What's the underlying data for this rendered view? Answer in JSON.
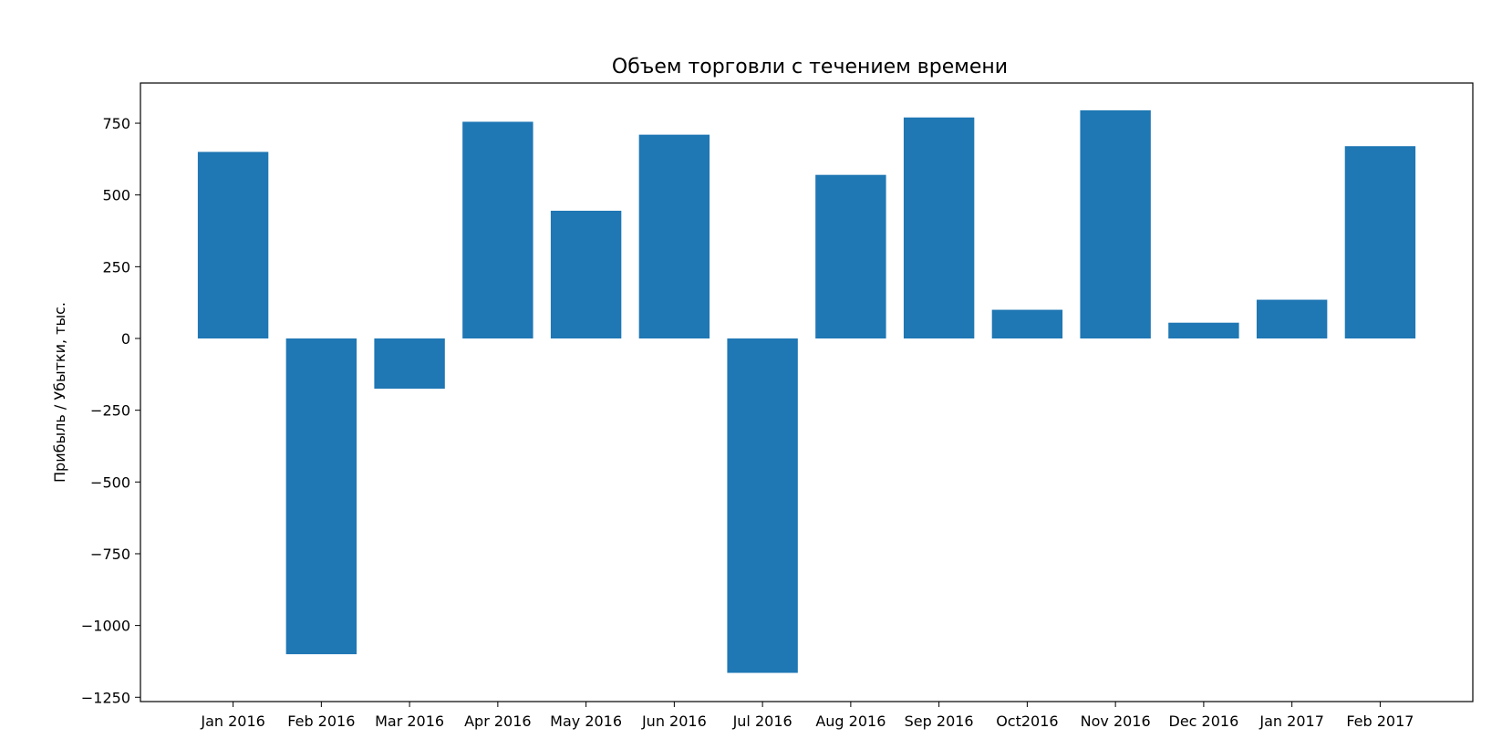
{
  "chart_data": {
    "type": "bar",
    "title": "Объем торговли с течением времени",
    "xlabel": "",
    "ylabel": "Прибыль / Убытки, тыс.",
    "categories": [
      "Jan 2016",
      "Feb 2016",
      "Mar 2016",
      "Apr 2016",
      "May 2016",
      "Jun 2016",
      "Jul 2016",
      "Aug 2016",
      "Sep 2016",
      "Oct2016",
      "Nov 2016",
      "Dec 2016",
      "Jan 2017",
      "Feb 2017"
    ],
    "values": [
      650,
      -1100,
      -175,
      755,
      445,
      710,
      -1165,
      570,
      770,
      100,
      795,
      55,
      135,
      670
    ],
    "ylim": [
      -1265,
      890
    ],
    "yticks": [
      750,
      500,
      250,
      0,
      -250,
      -500,
      -750,
      -1000,
      -1250
    ],
    "ytick_labels": [
      "750",
      "500",
      "250",
      "0",
      "−250",
      "−500",
      "−750",
      "−1000",
      "−1250"
    ],
    "grid": false,
    "bar_color": "#1f77b4"
  }
}
